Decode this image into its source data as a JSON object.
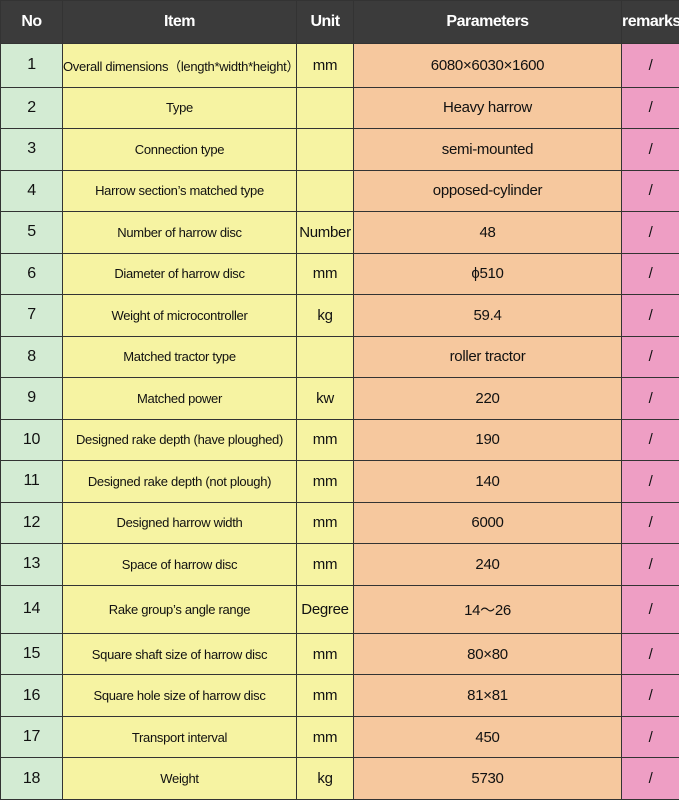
{
  "table": {
    "header": [
      "No",
      "Item",
      "Unit",
      "Parameters",
      "remarks"
    ],
    "rows": [
      [
        "1",
        "Overall dimensions（length*width*height）",
        "mm",
        "6080×6030×1600",
        "/"
      ],
      [
        "2",
        "Type",
        null,
        "Heavy harrow",
        "/"
      ],
      [
        "3",
        "Connection type",
        null,
        "semi-mounted",
        "/"
      ],
      [
        "4",
        "Harrow section’s matched type",
        null,
        "opposed-cylinder",
        "/"
      ],
      [
        "5",
        "Number of harrow disc",
        "Number",
        "48",
        "/"
      ],
      [
        "6",
        "Diameter of harrow disc",
        "mm",
        "ϕ510",
        "/"
      ],
      [
        "7",
        "Weight of microcontroller",
        "kg",
        "59.4",
        "/"
      ],
      [
        "8",
        "Matched tractor type",
        null,
        "roller tractor",
        "/"
      ],
      [
        "9",
        "Matched power",
        "kw",
        "220",
        "/"
      ],
      [
        "10",
        "Designed rake depth (have ploughed)",
        "mm",
        "190",
        "/"
      ],
      [
        "11",
        "Designed rake depth (not plough)",
        "mm",
        "140",
        "/"
      ],
      [
        "12",
        "Designed harrow width",
        "mm",
        "6000",
        "/"
      ],
      [
        "13",
        "Space of harrow disc",
        "mm",
        "240",
        "/"
      ],
      [
        "14",
        "Rake group’s angle range",
        "Degree",
        "14～26",
        "/"
      ],
      [
        "15",
        "Square shaft size of harrow disc",
        "mm",
        "80×80",
        "/"
      ],
      [
        "16",
        "Square hole size of harrow disc",
        "mm",
        "81×81",
        "/"
      ],
      [
        "17",
        "Transport interval",
        "mm",
        "450",
        "/"
      ],
      [
        "18",
        "Weight",
        "kg",
        "5730",
        "/"
      ]
    ]
  }
}
